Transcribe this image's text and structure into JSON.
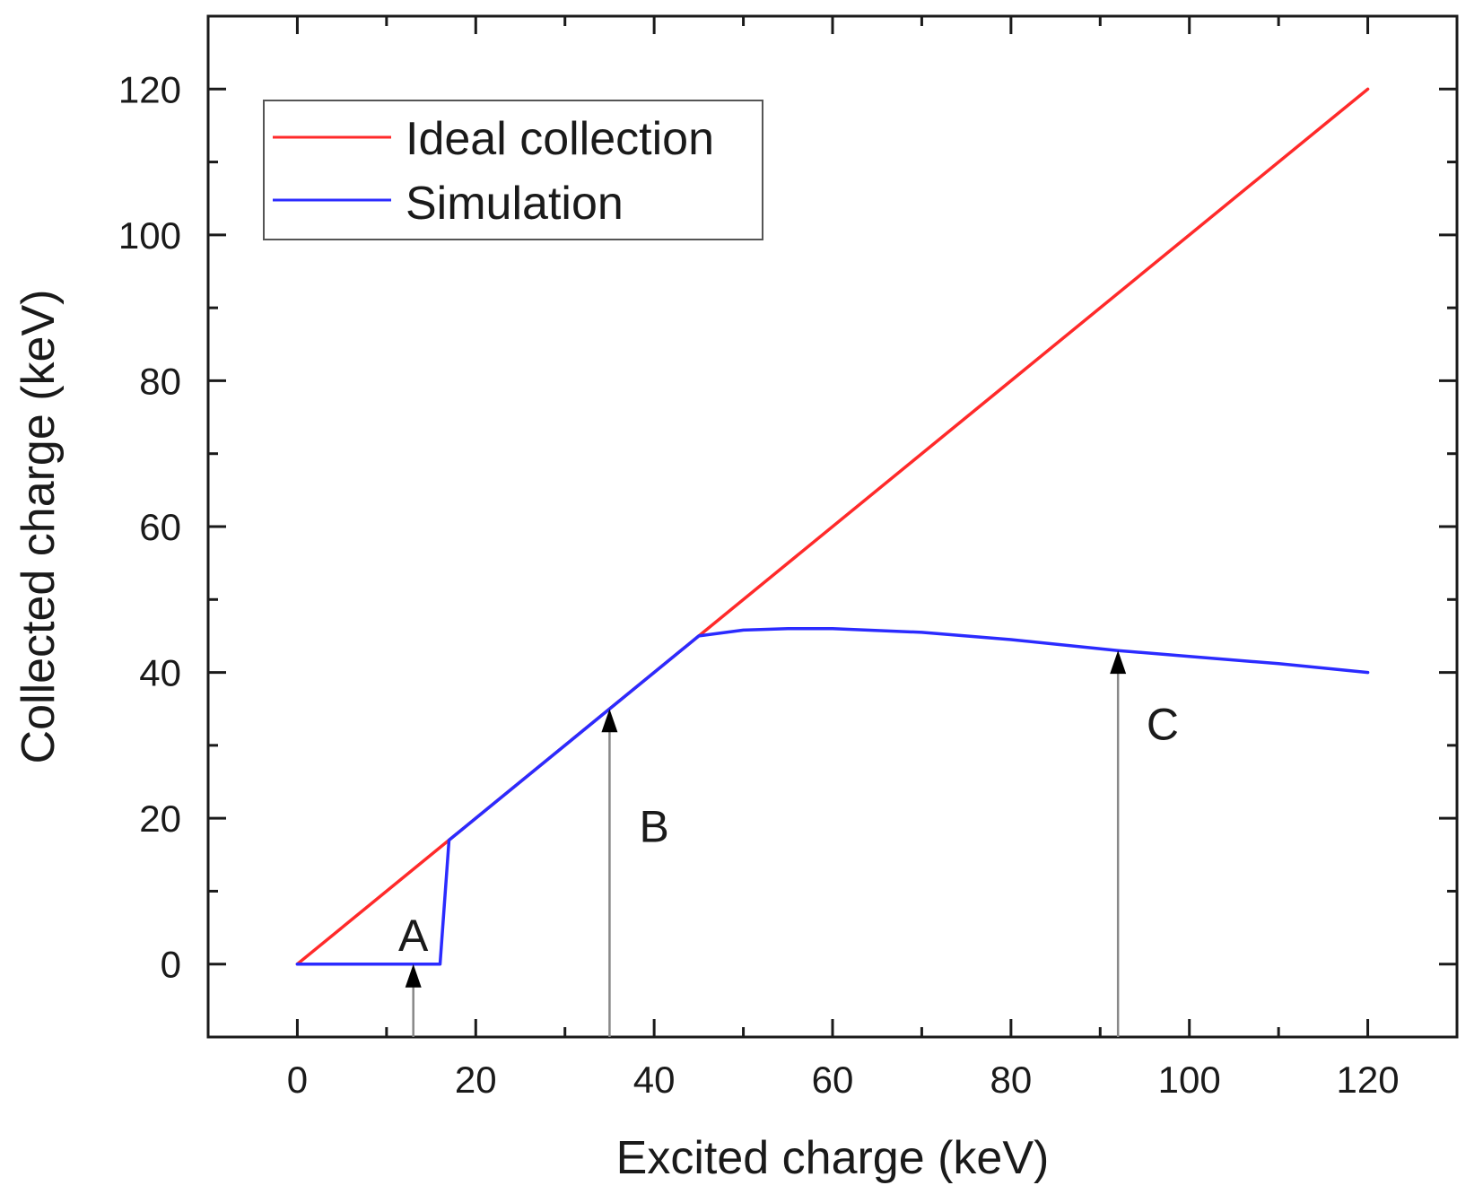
{
  "chart_data": {
    "type": "line",
    "title": "",
    "xlabel": "Excited charge (keV)",
    "ylabel": "Collected charge (keV)",
    "xlim": [
      -10,
      130
    ],
    "ylim": [
      -10,
      130
    ],
    "xticks": [
      0,
      20,
      40,
      60,
      80,
      100,
      120
    ],
    "yticks": [
      0,
      20,
      40,
      60,
      80,
      100,
      120
    ],
    "xtick_labels": [
      "0",
      "20",
      "40",
      "60",
      "80",
      "100",
      "120"
    ],
    "ytick_labels": [
      "0",
      "20",
      "40",
      "60",
      "80",
      "100",
      "120"
    ],
    "minor_step": 10,
    "grid": false,
    "legend_position": "top-left",
    "series": [
      {
        "name": "Ideal collection",
        "color": "#ff2a2a",
        "x": [
          0,
          120
        ],
        "y": [
          0,
          120
        ]
      },
      {
        "name": "Simulation",
        "color": "#2b2bff",
        "x": [
          0,
          16,
          17,
          20,
          30,
          40,
          45,
          50,
          55,
          60,
          70,
          80,
          92,
          100,
          110,
          120
        ],
        "y": [
          0,
          0,
          17,
          20,
          30,
          40,
          45,
          45.8,
          46,
          46,
          45.5,
          44.5,
          43,
          42.2,
          41.2,
          40
        ]
      }
    ],
    "annotations": [
      {
        "label": "A",
        "arrow_x": 13,
        "arrow_from_y": -10,
        "arrow_to_y": 0,
        "label_x": 13,
        "label_y": 4
      },
      {
        "label": "B",
        "arrow_x": 35,
        "arrow_from_y": -10,
        "arrow_to_y": 35,
        "label_x": 40,
        "label_y": 19
      },
      {
        "label": "C",
        "arrow_x": 92,
        "arrow_from_y": -10,
        "arrow_to_y": 43,
        "label_x": 97,
        "label_y": 33
      }
    ],
    "colors": {
      "axis": "#1a1a1a",
      "arrow": "#888888",
      "arrowhead": "#000000",
      "legend_border": "#555555"
    }
  }
}
